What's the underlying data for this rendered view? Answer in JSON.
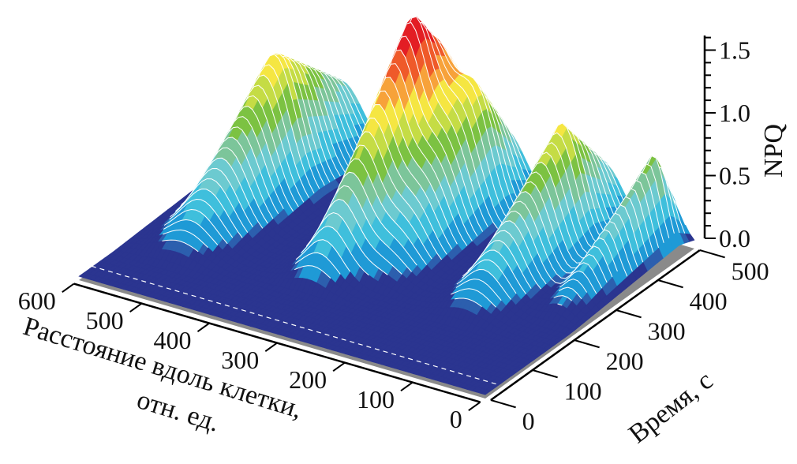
{
  "chart_data": {
    "type": "surface",
    "title": "",
    "xlabel": "Расстояние вдоль клетки,",
    "xlabel_line2": "отн. ед.",
    "ylabel": "Время, с",
    "zlabel": "NPQ",
    "xlim": [
      0,
      600
    ],
    "ylim": [
      0,
      500
    ],
    "zlim": [
      0,
      1.5
    ],
    "x_ticks": [
      "0",
      "100",
      "200",
      "300",
      "400",
      "500",
      "600"
    ],
    "y_ticks": [
      "0",
      "100",
      "200",
      "300",
      "400",
      "500"
    ],
    "z_ticks": [
      "0.0",
      "0.5",
      "1.0",
      "1.5"
    ],
    "peaks": [
      {
        "distance": 520,
        "time": 340,
        "npq": 1.1,
        "width": 45
      },
      {
        "distance": 338,
        "time": 370,
        "npq": 1.55,
        "width": 38
      },
      {
        "distance": 275,
        "time": 420,
        "npq": 1.0,
        "width": 40
      },
      {
        "distance": 133,
        "time": 400,
        "npq": 1.0,
        "width": 40
      },
      {
        "distance": 37,
        "time": 465,
        "npq": 0.75,
        "width": 25
      }
    ],
    "colormap": [
      "#2b3590",
      "#2c5fae",
      "#1f9ad6",
      "#3fbfdc",
      "#6ccad0",
      "#7cc59a",
      "#7cc242",
      "#c5dc45",
      "#f5e642",
      "#f7a23a",
      "#ef5a2a",
      "#e31e24"
    ],
    "floor_color": "#8a8a8a"
  }
}
